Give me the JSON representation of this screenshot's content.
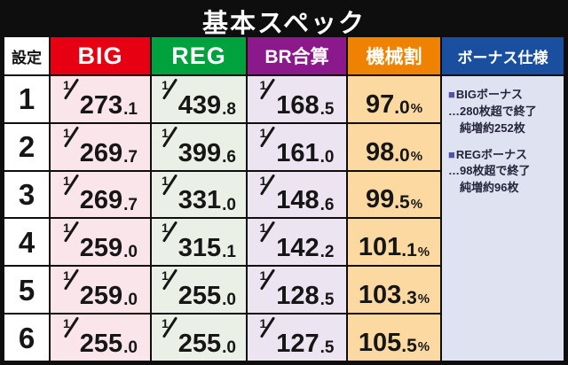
{
  "title": "基本スペック",
  "columns": {
    "setting": "設定",
    "big": "BIG",
    "reg": "REG",
    "br": "BR合算",
    "payout": "機械割",
    "bonus": "ボーナス仕様"
  },
  "fraction_numerator": "1",
  "percent_sign": "%",
  "rows": [
    {
      "setting": "1",
      "big": {
        "int": "273",
        "dec": ".1"
      },
      "reg": {
        "int": "439",
        "dec": ".8"
      },
      "br": {
        "int": "168",
        "dec": ".5"
      },
      "pay": {
        "int": "97",
        "dec": ".0"
      }
    },
    {
      "setting": "2",
      "big": {
        "int": "269",
        "dec": ".7"
      },
      "reg": {
        "int": "399",
        "dec": ".6"
      },
      "br": {
        "int": "161",
        "dec": ".0"
      },
      "pay": {
        "int": "98",
        "dec": ".0"
      }
    },
    {
      "setting": "3",
      "big": {
        "int": "269",
        "dec": ".7"
      },
      "reg": {
        "int": "331",
        "dec": ".0"
      },
      "br": {
        "int": "148",
        "dec": ".6"
      },
      "pay": {
        "int": "99",
        "dec": ".5"
      }
    },
    {
      "setting": "4",
      "big": {
        "int": "259",
        "dec": ".0"
      },
      "reg": {
        "int": "315",
        "dec": ".1"
      },
      "br": {
        "int": "142",
        "dec": ".2"
      },
      "pay": {
        "int": "101",
        "dec": ".1"
      }
    },
    {
      "setting": "5",
      "big": {
        "int": "259",
        "dec": ".0"
      },
      "reg": {
        "int": "255",
        "dec": ".0"
      },
      "br": {
        "int": "128",
        "dec": ".5"
      },
      "pay": {
        "int": "103",
        "dec": ".3"
      }
    },
    {
      "setting": "6",
      "big": {
        "int": "255",
        "dec": ".0"
      },
      "reg": {
        "int": "255",
        "dec": ".0"
      },
      "br": {
        "int": "127",
        "dec": ".5"
      },
      "pay": {
        "int": "105",
        "dec": ".5"
      }
    }
  ],
  "bonus_info": {
    "sections": [
      {
        "bullet": "■",
        "title": "BIGボーナス",
        "line1": "…280枚超で終了",
        "line2": "純増約252枚"
      },
      {
        "bullet": "■",
        "title": "REGボーナス",
        "line1": "…98枚超で終了",
        "line2": "純増約96枚"
      }
    ]
  },
  "colors": {
    "title_bg": "#0e0e0e",
    "big_header": "#e60012",
    "reg_header": "#00a23e",
    "br_header": "#8c198c",
    "payout_header": "#ef8200",
    "bonus_header": "#1a4fa0",
    "big_cell": "#f9e5ea",
    "reg_cell": "#eaf0e6",
    "br_cell": "#ece4f1",
    "payout_cell": "#fbd9a1",
    "bonus_panel": "#dee2f1",
    "bullet": "#5153a5"
  },
  "chart_data": {
    "type": "table",
    "title": "基本スペック",
    "columns": [
      "設定",
      "BIG",
      "REG",
      "BR合算",
      "機械割"
    ],
    "rows": [
      [
        "1",
        "1/273.1",
        "1/439.8",
        "1/168.5",
        "97.0%"
      ],
      [
        "2",
        "1/269.7",
        "1/399.6",
        "1/161.0",
        "98.0%"
      ],
      [
        "3",
        "1/269.7",
        "1/331.0",
        "1/148.6",
        "99.5%"
      ],
      [
        "4",
        "1/259.0",
        "1/315.1",
        "1/142.2",
        "101.1%"
      ],
      [
        "5",
        "1/259.0",
        "1/255.0",
        "1/128.5",
        "103.3%"
      ],
      [
        "6",
        "1/255.0",
        "1/255.0",
        "1/127.5",
        "105.5%"
      ]
    ],
    "notes": [
      "■BIGボーナス …280枚超で終了 純増約252枚",
      "■REGボーナス …98枚超で終了 純増約96枚"
    ]
  }
}
